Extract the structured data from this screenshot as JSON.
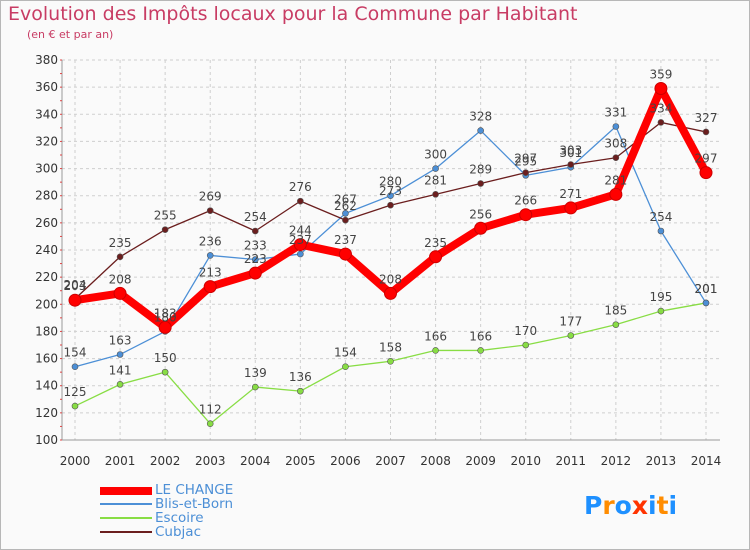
{
  "chart_data": {
    "type": "line",
    "title": "Evolution des Impôts locaux pour la Commune par Habitant",
    "subtitle": "(en € et par an)",
    "categories": [
      "2000",
      "2001",
      "2002",
      "2003",
      "2004",
      "2005",
      "2006",
      "2007",
      "2008",
      "2009",
      "2010",
      "2011",
      "2012",
      "2013",
      "2014"
    ],
    "y_ticks": [
      100,
      120,
      140,
      160,
      180,
      200,
      220,
      240,
      260,
      280,
      300,
      320,
      340,
      360,
      380
    ],
    "ylim": [
      100,
      380
    ],
    "grid": true,
    "series": [
      {
        "name": "LE CHANGE",
        "color": "#ff0000",
        "values": [
          203,
          208,
          183,
          213,
          223,
          244,
          237,
          208,
          235,
          256,
          266,
          271,
          281,
          359,
          297
        ],
        "labels": [
          "203",
          "208",
          "183",
          "213",
          "223",
          "244",
          "237",
          "208",
          "235",
          "256",
          "266",
          "271",
          "281",
          "359",
          "297"
        ]
      },
      {
        "name": "Blis-et-Born",
        "color": "#4c8fd6",
        "values": [
          154,
          163,
          180,
          236,
          233,
          237,
          267,
          280,
          300,
          328,
          295,
          301,
          331,
          254,
          201
        ],
        "labels": [
          "154",
          "163",
          "180",
          "236",
          "233",
          "237",
          "267",
          "280",
          "300",
          "328",
          "295",
          "301",
          "331",
          "254",
          "201"
        ]
      },
      {
        "name": "Escoire",
        "color": "#88dd44",
        "values": [
          125,
          141,
          150,
          112,
          139,
          136,
          154,
          158,
          166,
          166,
          170,
          177,
          185,
          195,
          201
        ],
        "labels": [
          "125",
          "141",
          "150",
          "112",
          "139",
          "136",
          "154",
          "158",
          "166",
          "166",
          "170",
          "177",
          "185",
          "195",
          "201"
        ]
      },
      {
        "name": "Cubjac",
        "color": "#6b1e1e",
        "values": [
          204,
          235,
          255,
          269,
          254,
          276,
          262,
          273,
          281,
          289,
          297,
          303,
          308,
          334,
          327
        ],
        "labels": [
          "204",
          "235",
          "255",
          "269",
          "254",
          "276",
          "262",
          "273",
          "281",
          "289",
          "297",
          "303",
          "308",
          "334",
          "327"
        ]
      }
    ]
  },
  "logo": {
    "text": "Proxiti",
    "letters": [
      "P",
      "r",
      "o",
      "x",
      "i",
      "t",
      "i"
    ],
    "colors": [
      "#1e90ff",
      "#ff8c00",
      "#1e90ff",
      "#ff3300",
      "#1e90ff",
      "#ff8c00",
      "#1e90ff"
    ]
  }
}
